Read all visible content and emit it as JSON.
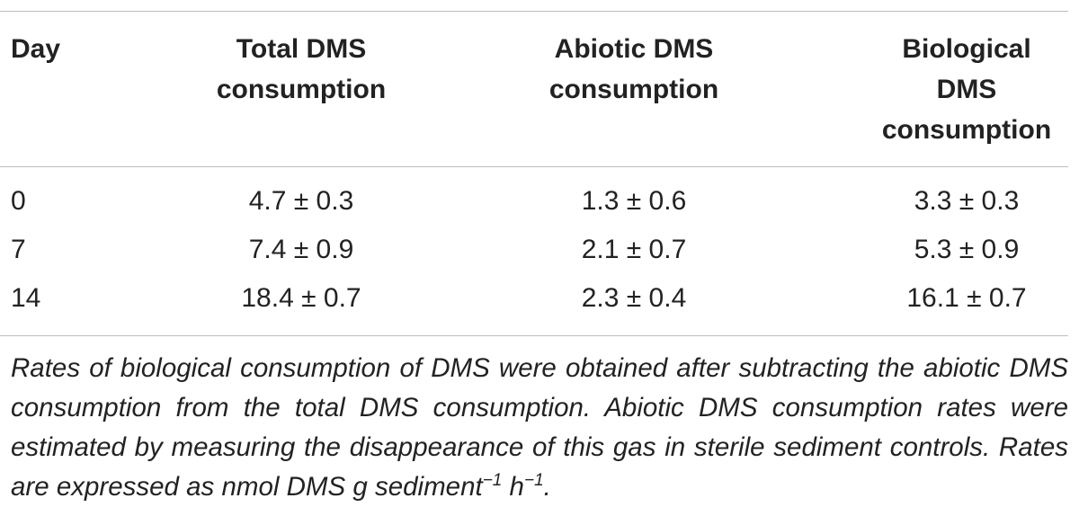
{
  "table": {
    "headers": [
      "Day",
      "Total DMS\nconsumption",
      "Abiotic DMS\nconsumption",
      "Biological\nDMS\nconsumption"
    ],
    "rows": [
      [
        "0",
        "4.7 ± 0.3",
        "1.3 ± 0.6",
        "3.3 ± 0.3"
      ],
      [
        "7",
        "7.4 ± 0.9",
        "2.1 ± 0.7",
        "5.3 ± 0.9"
      ],
      [
        "14",
        "18.4 ± 0.7",
        "2.3 ± 0.4",
        "16.1 ± 0.7"
      ]
    ]
  },
  "footnote": {
    "text": "Rates of biological consumption of DMS were obtained after subtracting the abiotic DMS consumption from the total DMS consumption. Abiotic DMS consumption rates were estimated by measuring the disappearance of this gas in sterile sediment controls. Rates are expressed as nmol DMS g sediment",
    "sup1": "−1",
    "unit_h": " h",
    "sup2": "−1",
    "end": "."
  }
}
